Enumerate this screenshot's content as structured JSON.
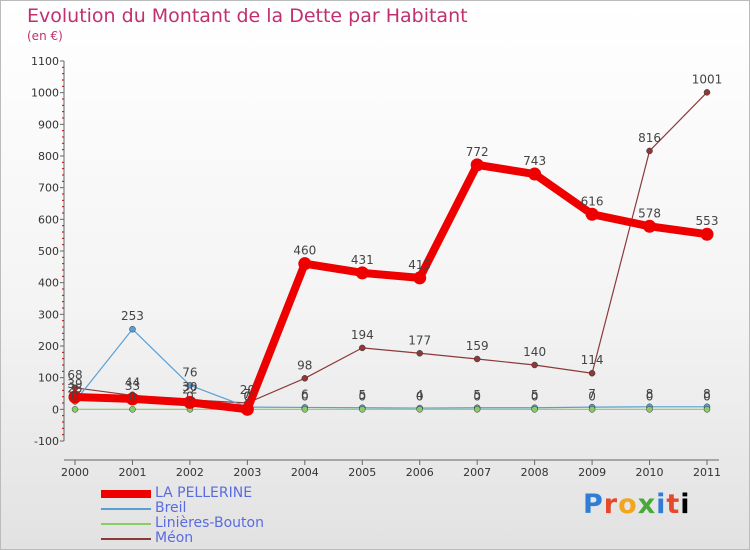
{
  "chart_data": {
    "type": "line",
    "title": "Evolution du Montant de la Dette par Habitant",
    "subtitle": "(en €)",
    "xlabel": "",
    "ylabel": "",
    "x": [
      "2000",
      "2001",
      "2002",
      "2003",
      "2004",
      "2005",
      "2006",
      "2007",
      "2008",
      "2009",
      "2010",
      "2011"
    ],
    "ylim": [
      -100,
      1100
    ],
    "yticks": [
      "-100",
      "0",
      "100",
      "200",
      "300",
      "400",
      "500",
      "600",
      "700",
      "800",
      "900",
      "1000",
      "1100"
    ],
    "grid": false,
    "legend_position": "bottom-left",
    "series": [
      {
        "name": "Méon",
        "color": "#8b3a3a",
        "values": [
          68,
          44,
          30,
          20,
          98,
          194,
          177,
          159,
          140,
          114,
          816,
          1001
        ],
        "labels": [
          "68",
          "44",
          "30",
          "20",
          "98",
          "194",
          "177",
          "159",
          "140",
          "114",
          "816",
          "1001"
        ]
      },
      {
        "name": "Breil",
        "color": "#5a9fd4",
        "values": [
          25,
          253,
          76,
          7,
          6,
          5,
          4,
          5,
          5,
          7,
          8,
          8
        ],
        "labels": [
          "25",
          "253",
          "76",
          "7",
          "6",
          "5",
          "4",
          "5",
          "5",
          "7",
          "8",
          "8"
        ]
      },
      {
        "name": "Linières-Bouton",
        "color": "#88cc66",
        "values": [
          0,
          0,
          0,
          0,
          0,
          0,
          0,
          0,
          0,
          0,
          0,
          0
        ],
        "labels": [
          "0",
          "0",
          "0",
          "0",
          "0",
          "0",
          "0",
          "0",
          "0",
          "0",
          "0",
          "0"
        ]
      },
      {
        "name": "LA PELLERINE",
        "color": "#ee0000",
        "values": [
          39,
          33,
          22,
          0,
          460,
          431,
          415,
          772,
          743,
          616,
          578,
          553
        ],
        "labels": [
          "39",
          "33",
          "22",
          "0",
          "460",
          "431",
          "415",
          "772",
          "743",
          "616",
          "578",
          "553"
        ]
      }
    ],
    "legend": [
      "LA PELLERINE",
      "Breil",
      "Linières-Bouton",
      "Méon"
    ]
  },
  "branding": {
    "logo_text": [
      "P",
      "r",
      "o",
      "x",
      "i",
      "t",
      "i"
    ]
  }
}
